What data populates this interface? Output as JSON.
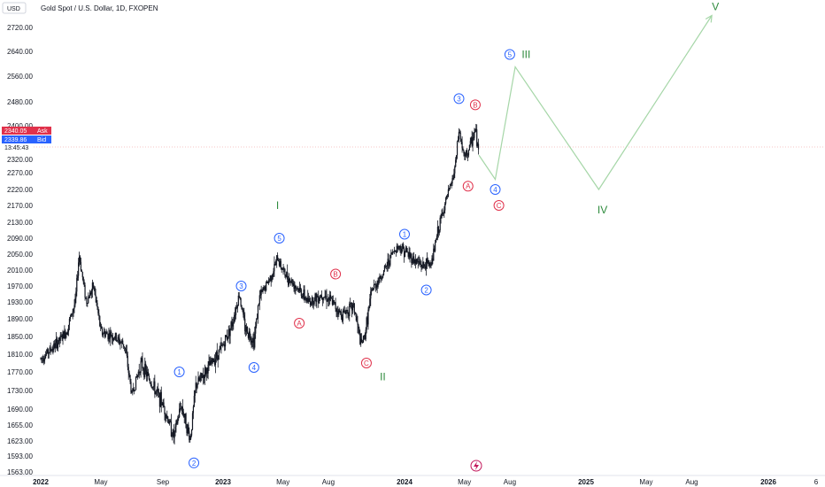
{
  "header": {
    "currency_button": "USD",
    "symbol_title": "Gold Spot / U.S. Dollar, 1D, FXOPEN"
  },
  "price_tags": {
    "ask_price": "2340.05",
    "ask_label": "Ask",
    "bid_price": "2339.86",
    "bid_label": "Bid",
    "countdown": "13:45:43",
    "ask_color": "#e0314b",
    "bid_color": "#2962ff"
  },
  "colors": {
    "candle": "#131722",
    "projection": "#a5d6a7",
    "blue_wave": "#2962ff",
    "red_wave": "#e0314b",
    "green_wave": "#2e8b3d",
    "price_line": "#f7c6c6"
  },
  "chart_data": {
    "type": "candlestick",
    "title": "Gold Spot / U.S. Dollar, 1D, FXOPEN",
    "xlabel": "",
    "ylabel": "",
    "ylim": [
      1563,
      2760
    ],
    "y_ticks": [
      "2720.00",
      "2640.00",
      "2560.00",
      "2480.00",
      "2400.00",
      "2320.00",
      "2270.00",
      "2220.00",
      "2170.00",
      "2130.00",
      "2090.00",
      "2050.00",
      "2010.00",
      "1970.00",
      "1930.00",
      "1890.00",
      "1850.00",
      "1810.00",
      "1770.00",
      "1730.00",
      "1690.00",
      "1655.00",
      "1623.00",
      "1593.00",
      "1563.00"
    ],
    "x_ticks": [
      {
        "label": "2022",
        "t": 2022.0,
        "bold": true
      },
      {
        "label": "May",
        "t": 2022.33
      },
      {
        "label": "Sep",
        "t": 2022.67
      },
      {
        "label": "2023",
        "t": 2023.0,
        "bold": true
      },
      {
        "label": "May",
        "t": 2023.33
      },
      {
        "label": "Aug",
        "t": 2023.58
      },
      {
        "label": "2024",
        "t": 2024.0,
        "bold": true
      },
      {
        "label": "May",
        "t": 2024.33
      },
      {
        "label": "Aug",
        "t": 2024.58
      },
      {
        "label": "2025",
        "t": 2025.0,
        "bold": true
      },
      {
        "label": "May",
        "t": 2025.33
      },
      {
        "label": "Aug",
        "t": 2025.58
      },
      {
        "label": "2026",
        "t": 2026.0,
        "bold": true
      },
      {
        "label": "6",
        "t": 2026.42
      }
    ],
    "price_path": [
      [
        2022.0,
        1800
      ],
      [
        2022.08,
        1830
      ],
      [
        2022.14,
        1860
      ],
      [
        2022.19,
        1930
      ],
      [
        2022.21,
        2050
      ],
      [
        2022.25,
        1930
      ],
      [
        2022.29,
        1970
      ],
      [
        2022.33,
        1860
      ],
      [
        2022.4,
        1850
      ],
      [
        2022.46,
        1830
      ],
      [
        2022.5,
        1720
      ],
      [
        2022.55,
        1790
      ],
      [
        2022.6,
        1750
      ],
      [
        2022.67,
        1700
      ],
      [
        2022.73,
        1630
      ],
      [
        2022.77,
        1700
      ],
      [
        2022.82,
        1625
      ],
      [
        2022.85,
        1740
      ],
      [
        2022.92,
        1780
      ],
      [
        2023.0,
        1830
      ],
      [
        2023.05,
        1880
      ],
      [
        2023.09,
        1950
      ],
      [
        2023.12,
        1870
      ],
      [
        2023.17,
        1840
      ],
      [
        2023.2,
        1940
      ],
      [
        2023.27,
        2000
      ],
      [
        2023.3,
        2040
      ],
      [
        2023.34,
        2000
      ],
      [
        2023.38,
        1980
      ],
      [
        2023.42,
        1960
      ],
      [
        2023.47,
        1930
      ],
      [
        2023.55,
        1950
      ],
      [
        2023.6,
        1930
      ],
      [
        2023.65,
        1900
      ],
      [
        2023.72,
        1920
      ],
      [
        2023.76,
        1830
      ],
      [
        2023.78,
        1850
      ],
      [
        2023.82,
        1960
      ],
      [
        2023.88,
        2000
      ],
      [
        2023.93,
        2050
      ],
      [
        2023.96,
        2070
      ],
      [
        2024.0,
        2060
      ],
      [
        2024.04,
        2040
      ],
      [
        2024.1,
        2020
      ],
      [
        2024.15,
        2030
      ],
      [
        2024.18,
        2100
      ],
      [
        2024.22,
        2170
      ],
      [
        2024.27,
        2260
      ],
      [
        2024.3,
        2390
      ],
      [
        2024.33,
        2320
      ],
      [
        2024.36,
        2350
      ],
      [
        2024.39,
        2390
      ],
      [
        2024.41,
        2330
      ]
    ],
    "projection": [
      [
        2024.41,
        2330
      ],
      [
        2024.5,
        2250
      ],
      [
        2024.61,
        2590
      ],
      [
        2025.07,
        2220
      ],
      [
        2025.69,
        2760
      ]
    ],
    "wave_labels": [
      {
        "text": "1",
        "style": "blue",
        "t": 2022.76,
        "price": 1770
      },
      {
        "text": "2",
        "style": "blue",
        "t": 2022.84,
        "price": 1580
      },
      {
        "text": "3",
        "style": "blue",
        "t": 2023.1,
        "price": 1970
      },
      {
        "text": "4",
        "style": "blue",
        "t": 2023.17,
        "price": 1780
      },
      {
        "text": "5",
        "style": "blue",
        "t": 2023.31,
        "price": 2090
      },
      {
        "text": "A",
        "style": "red",
        "t": 2023.42,
        "price": 1880
      },
      {
        "text": "B",
        "style": "red",
        "t": 2023.62,
        "price": 2000
      },
      {
        "text": "C",
        "style": "red",
        "t": 2023.79,
        "price": 1790
      },
      {
        "text": "1",
        "style": "blue",
        "t": 2024.0,
        "price": 2100
      },
      {
        "text": "2",
        "style": "blue",
        "t": 2024.12,
        "price": 1960
      },
      {
        "text": "3",
        "style": "blue",
        "t": 2024.3,
        "price": 2490
      },
      {
        "text": "B",
        "style": "red",
        "t": 2024.39,
        "price": 2470
      },
      {
        "text": "A",
        "style": "red",
        "t": 2024.35,
        "price": 2230
      },
      {
        "text": "4",
        "style": "blue",
        "t": 2024.5,
        "price": 2220
      },
      {
        "text": "C",
        "style": "red",
        "t": 2024.52,
        "price": 2170
      },
      {
        "text": "5",
        "style": "blue",
        "t": 2024.58,
        "price": 2630
      },
      {
        "text": "I",
        "style": "green",
        "t": 2023.3,
        "price": 2170
      },
      {
        "text": "II",
        "style": "green",
        "t": 2023.88,
        "price": 1760
      },
      {
        "text": "III",
        "style": "green",
        "t": 2024.67,
        "price": 2630
      },
      {
        "text": "IV",
        "style": "green",
        "t": 2025.09,
        "price": 2160
      },
      {
        "text": "V",
        "style": "green",
        "t": 2025.71,
        "price": 2790
      }
    ]
  }
}
